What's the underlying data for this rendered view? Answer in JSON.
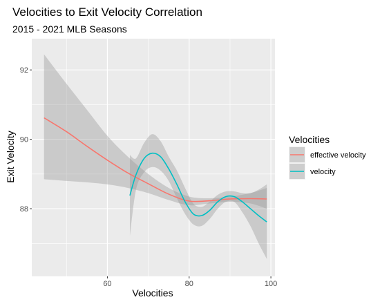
{
  "chart_data": {
    "type": "line",
    "title": "Velocities to Exit Velocity Correlation",
    "subtitle": "2015 - 2021 MLB Seasons",
    "xlabel": "Velocities",
    "ylabel": "Exit Velocity",
    "xlim": [
      41.5,
      101
    ],
    "ylim": [
      86.05,
      92.9
    ],
    "x_ticks": [
      60,
      80,
      100
    ],
    "y_ticks": [
      88,
      90,
      92
    ],
    "grid": true,
    "legend": {
      "title": "Velocities",
      "position": "right"
    },
    "series": [
      {
        "name": "effective velocity",
        "color": "#F8766D",
        "x": [
          44.5,
          50,
          55,
          60,
          65,
          70,
          75,
          80,
          85,
          90,
          95,
          99
        ],
        "y": [
          90.62,
          90.22,
          89.8,
          89.4,
          89.03,
          88.72,
          88.42,
          88.22,
          88.23,
          88.28,
          88.29,
          88.28
        ],
        "lower": [
          88.85,
          88.8,
          88.76,
          88.7,
          88.6,
          88.45,
          88.25,
          88.1,
          88.15,
          88.2,
          88.15,
          88.0
        ],
        "upper": [
          92.45,
          91.6,
          90.85,
          90.1,
          89.5,
          89.0,
          88.6,
          88.35,
          88.3,
          88.35,
          88.45,
          88.6
        ]
      },
      {
        "name": "velocity",
        "color": "#00BFC4",
        "x": [
          65.5,
          67,
          69,
          71,
          73,
          75,
          77,
          79,
          81,
          83,
          85,
          87,
          89,
          91,
          93,
          95,
          97,
          99
        ],
        "y": [
          88.38,
          88.98,
          89.45,
          89.6,
          89.5,
          89.15,
          88.7,
          88.2,
          87.85,
          87.8,
          87.95,
          88.2,
          88.35,
          88.35,
          88.2,
          88.0,
          87.8,
          87.62
        ],
        "lower": [
          87.2,
          88.55,
          89.05,
          89.2,
          89.1,
          88.8,
          88.3,
          87.85,
          87.55,
          87.5,
          87.7,
          88.0,
          88.2,
          88.2,
          87.9,
          87.5,
          87.0,
          86.55
        ],
        "upper": [
          89.55,
          89.45,
          89.9,
          90.15,
          89.95,
          89.5,
          89.1,
          88.6,
          88.15,
          88.05,
          88.2,
          88.4,
          88.5,
          88.5,
          88.45,
          88.45,
          88.55,
          88.7
        ]
      }
    ]
  }
}
